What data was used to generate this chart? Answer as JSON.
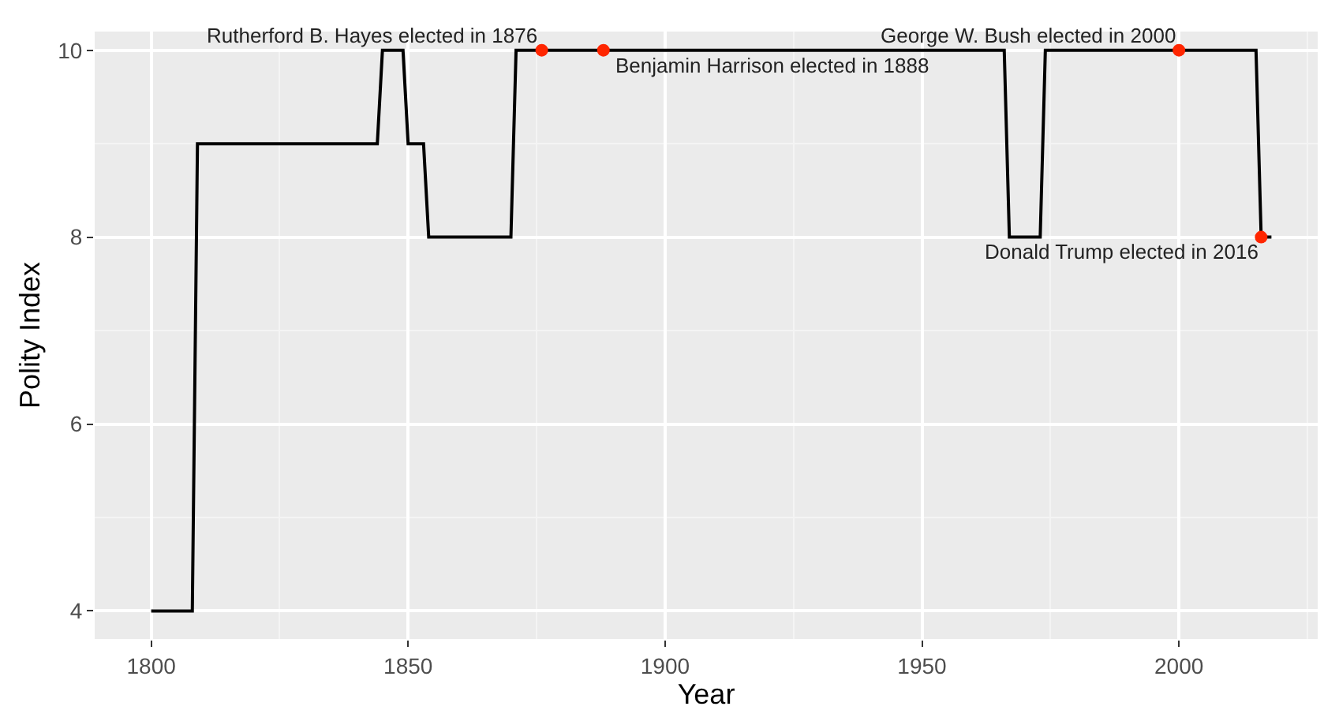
{
  "chart_data": {
    "type": "line",
    "xlabel": "Year",
    "ylabel": "Polity Index",
    "xlim": [
      1789,
      2027
    ],
    "ylim": [
      3.7,
      10.2
    ],
    "xticks": [
      1800,
      1850,
      1900,
      1950,
      2000
    ],
    "yticks": [
      4,
      6,
      8,
      10
    ],
    "grid": true,
    "series": [
      {
        "color": "#000000",
        "marker": "none",
        "line_style": "solid",
        "x": [
          1800,
          1808,
          1809,
          1844,
          1845,
          1849,
          1850,
          1853,
          1854,
          1870,
          1871,
          1966,
          1967,
          1973,
          1974,
          2015,
          2016,
          2018
        ],
        "values": [
          4,
          4,
          9,
          9,
          10,
          10,
          9,
          9,
          8,
          8,
          10,
          10,
          8,
          8,
          10,
          10,
          8,
          8
        ]
      },
      {
        "type": "scatter",
        "color": "#ff2600",
        "marker": "circle",
        "x": [
          1876,
          1888,
          2000,
          2016
        ],
        "values": [
          10,
          10,
          10,
          8
        ]
      }
    ],
    "annotations": [
      {
        "text": "Rutherford B. Hayes elected in 1876",
        "x": 1876,
        "y": 10
      },
      {
        "text": "Benjamin Harrison elected in 1888",
        "x": 1888,
        "y": 10
      },
      {
        "text": "George W. Bush elected in 2000",
        "x": 2000,
        "y": 10
      },
      {
        "text": "Donald Trump elected in 2016",
        "x": 2016,
        "y": 8
      }
    ]
  }
}
